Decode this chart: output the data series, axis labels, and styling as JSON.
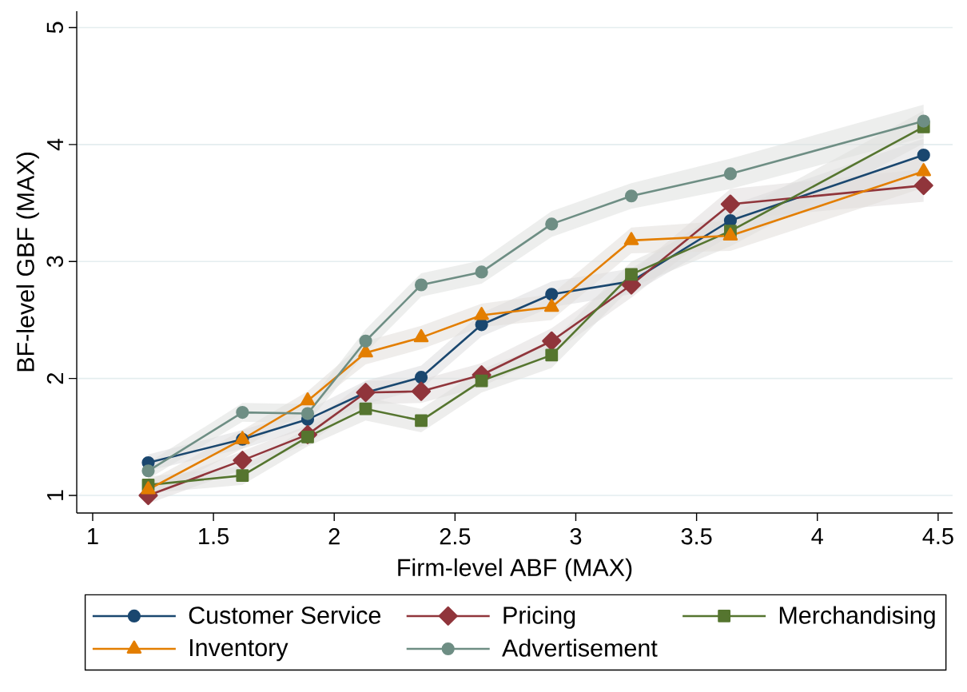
{
  "chart_data": {
    "type": "line",
    "xlabel": "Firm-level ABF (MAX)",
    "ylabel": "BF-level GBF (MAX)",
    "xlim": [
      0.934,
      4.56
    ],
    "ylim": [
      0.85,
      5.14
    ],
    "xticks": [
      1,
      1.5,
      2,
      2.5,
      3,
      3.5,
      4,
      4.5
    ],
    "yticks": [
      1,
      2,
      3,
      4,
      5
    ],
    "grid": "y",
    "legend": "bottom",
    "line_style": "solid",
    "x": [
      1.23,
      1.62,
      1.89,
      2.13,
      2.36,
      2.61,
      2.9,
      3.23,
      3.64,
      4.44
    ],
    "series": [
      {
        "name": "Customer Service",
        "color": "#1a476f",
        "marker": "circle",
        "values": [
          1.28,
          1.48,
          1.65,
          1.88,
          2.01,
          2.46,
          2.72,
          2.83,
          3.35,
          3.91
        ],
        "lower": [
          1.21,
          1.4,
          1.57,
          1.78,
          1.91,
          2.36,
          2.61,
          2.72,
          3.22,
          3.77
        ],
        "upper": [
          1.35,
          1.56,
          1.73,
          1.98,
          2.11,
          2.56,
          2.83,
          2.94,
          3.48,
          4.05
        ]
      },
      {
        "name": "Pricing",
        "color": "#90353b",
        "marker": "diamond",
        "values": [
          1.0,
          1.3,
          1.52,
          1.88,
          1.89,
          2.03,
          2.32,
          2.8,
          3.49,
          3.65
        ],
        "lower": [
          0.93,
          1.22,
          1.44,
          1.78,
          1.79,
          1.93,
          2.21,
          2.69,
          3.36,
          3.51
        ],
        "upper": [
          1.07,
          1.38,
          1.6,
          1.98,
          1.99,
          2.13,
          2.43,
          2.91,
          3.62,
          3.79
        ]
      },
      {
        "name": "Merchandising",
        "color": "#55752f",
        "marker": "square",
        "values": [
          1.09,
          1.17,
          1.5,
          1.74,
          1.64,
          1.98,
          2.2,
          2.89,
          3.26,
          4.15
        ],
        "lower": [
          1.02,
          1.09,
          1.42,
          1.64,
          1.54,
          1.88,
          2.09,
          2.78,
          3.13,
          4.01
        ],
        "upper": [
          1.16,
          1.25,
          1.58,
          1.84,
          1.74,
          2.08,
          2.31,
          3.0,
          3.39,
          4.29
        ]
      },
      {
        "name": "Inventory",
        "color": "#e37e00",
        "marker": "triangle",
        "values": [
          1.05,
          1.48,
          1.81,
          2.22,
          2.35,
          2.54,
          2.61,
          3.18,
          3.22,
          3.77
        ],
        "lower": [
          0.98,
          1.4,
          1.73,
          2.12,
          2.25,
          2.44,
          2.5,
          3.07,
          3.09,
          3.63
        ],
        "upper": [
          1.12,
          1.56,
          1.89,
          2.32,
          2.45,
          2.64,
          2.72,
          3.29,
          3.35,
          3.91
        ]
      },
      {
        "name": "Advertisement",
        "color": "#6e8e84",
        "marker": "circle",
        "values": [
          1.21,
          1.71,
          1.7,
          2.32,
          2.8,
          2.91,
          3.32,
          3.56,
          3.75,
          4.2
        ],
        "lower": [
          1.14,
          1.63,
          1.62,
          2.22,
          2.7,
          2.81,
          3.21,
          3.45,
          3.62,
          4.06
        ],
        "upper": [
          1.28,
          1.79,
          1.78,
          2.42,
          2.9,
          3.01,
          3.43,
          3.67,
          3.88,
          4.34
        ]
      }
    ]
  }
}
